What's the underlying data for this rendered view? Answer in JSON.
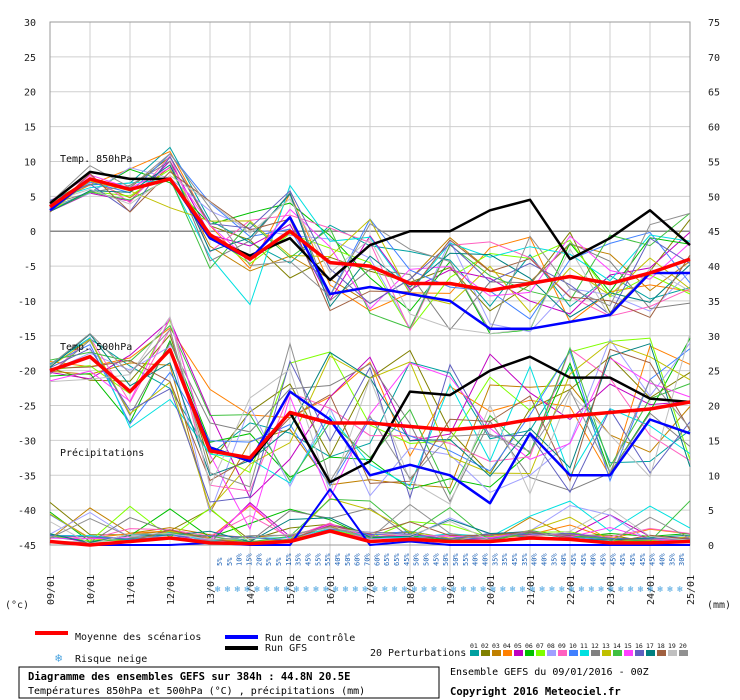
{
  "chart_data": {
    "type": "line",
    "x": [
      "09/01",
      "10/01",
      "11/01",
      "12/01",
      "13/01",
      "14/01",
      "15/01",
      "16/01",
      "17/01",
      "18/01",
      "19/01",
      "20/01",
      "21/01",
      "22/01",
      "23/01",
      "24/01",
      "25/01"
    ],
    "left_axis": {
      "unit": "(°c)",
      "ylim": [
        -45,
        30
      ],
      "ticks": [
        30,
        25,
        20,
        15,
        10,
        5,
        0,
        -5,
        -10,
        -15,
        -20,
        -25,
        -30,
        -35,
        -40,
        -45
      ]
    },
    "right_axis": {
      "unit": "(mm)",
      "ylim": [
        0,
        75
      ],
      "ticks": [
        75,
        70,
        65,
        60,
        55,
        50,
        45,
        40,
        35,
        30,
        25,
        20,
        15,
        10,
        5,
        0
      ]
    },
    "panel_labels": {
      "t850": "Temp. 850hPa",
      "t500": "Temp. 500hPa",
      "precip": "Précipitations"
    },
    "colors": {
      "mean": "#ff0000",
      "control": "#0000ff",
      "gfs": "#000000",
      "grid": "#c8c8c8",
      "snow": "#4aa3df"
    },
    "t850": {
      "mean": [
        3.5,
        7.5,
        6,
        7.5,
        -0.5,
        -4,
        0,
        -4.5,
        -5,
        -7.5,
        -7.5,
        -8.5,
        -7.5,
        -6.5,
        -7.5,
        -6,
        -4
      ],
      "control": [
        3,
        7.5,
        6,
        7.5,
        -1,
        -4,
        2,
        -9,
        -8,
        -9,
        -10,
        -14,
        -14,
        -13,
        -12,
        -6,
        -6
      ],
      "gfs": [
        4,
        8.5,
        7.5,
        7.5,
        -1,
        -3.5,
        -1,
        -7,
        -2,
        0,
        0,
        3,
        4.5,
        -4,
        -1,
        3,
        -2
      ]
    },
    "t500": {
      "mean": [
        -20,
        -18,
        -23,
        -17,
        -31.5,
        -32.5,
        -26,
        -27.5,
        -27.5,
        -28,
        -28.5,
        -28,
        -27,
        -26.5,
        -26,
        -25.5,
        -24.5
      ],
      "control": [
        -20,
        -18,
        -23,
        -17,
        -31,
        -33,
        -23,
        -27,
        -35,
        -33.5,
        -35,
        -39,
        -29,
        -35,
        -35,
        -27,
        -29
      ],
      "gfs": [
        -20,
        -18,
        -23,
        -17,
        -31,
        -33,
        -26,
        -36,
        -33,
        -23,
        -23.5,
        -20,
        -18,
        -21,
        -21,
        -24,
        -24.5
      ]
    },
    "precip": {
      "mean": [
        0.5,
        0,
        0.5,
        1,
        0.3,
        0.2,
        0.5,
        2,
        0.5,
        0.8,
        0.5,
        0.5,
        1,
        0.8,
        0.3,
        0.3,
        0.5
      ],
      "control": [
        0.5,
        0,
        0,
        0,
        0.3,
        0,
        0,
        8,
        0,
        0.5,
        0,
        0,
        0,
        0,
        0,
        0,
        0
      ]
    },
    "snow_risk": [
      "5%",
      "5%",
      "10%",
      "15%",
      "20%",
      "5%",
      "5%",
      "15%",
      "35%",
      "45%",
      "55%",
      "55%",
      "40%",
      "50%",
      "60%",
      "70%",
      "60%",
      "65%",
      "65%",
      "45%",
      "50%",
      "50%",
      "45%",
      "50%",
      "50%",
      "55%",
      "40%",
      "40%",
      "35%",
      "35%",
      "45%",
      "35%",
      "40%",
      "40%",
      "35%",
      "40%",
      "45%",
      "45%",
      "40%",
      "45%",
      "45%",
      "45%",
      "45%",
      "45%",
      "45%",
      "40%",
      "35%",
      "30%"
    ],
    "legend": {
      "mean": "Moyenne des scénarios",
      "control": "Run de contrôle",
      "gfs": "Run GFS",
      "snow": "Risque neige",
      "perturbations": "20 Perturbations",
      "perturbation_ids": [
        "01",
        "02",
        "03",
        "04",
        "05",
        "06",
        "07",
        "08",
        "09",
        "10",
        "11",
        "12",
        "13",
        "14",
        "15",
        "16",
        "17",
        "18",
        "19",
        "20"
      ],
      "perturbation_colors": [
        "#00a0a0",
        "#808000",
        "#c08000",
        "#ff8000",
        "#c000c0",
        "#00c000",
        "#80ff00",
        "#a0a0ff",
        "#ff60c0",
        "#4080ff",
        "#00e0e0",
        "#808080",
        "#c0c000",
        "#40c040",
        "#ff40ff",
        "#6060c0",
        "#008080",
        "#a06040",
        "#c0c0c0",
        "#909090"
      ]
    },
    "info": {
      "title": "Diagramme des ensembles GEFS sur 384h : 44.8N 20.5E",
      "subtitle": "Températures 850hPa et 500hPa (°C) , précipitations (mm)",
      "run": "Ensemble GEFS du 09/01/2016 - 00Z",
      "copyright": "Copyright 2016 Meteociel.fr"
    }
  }
}
